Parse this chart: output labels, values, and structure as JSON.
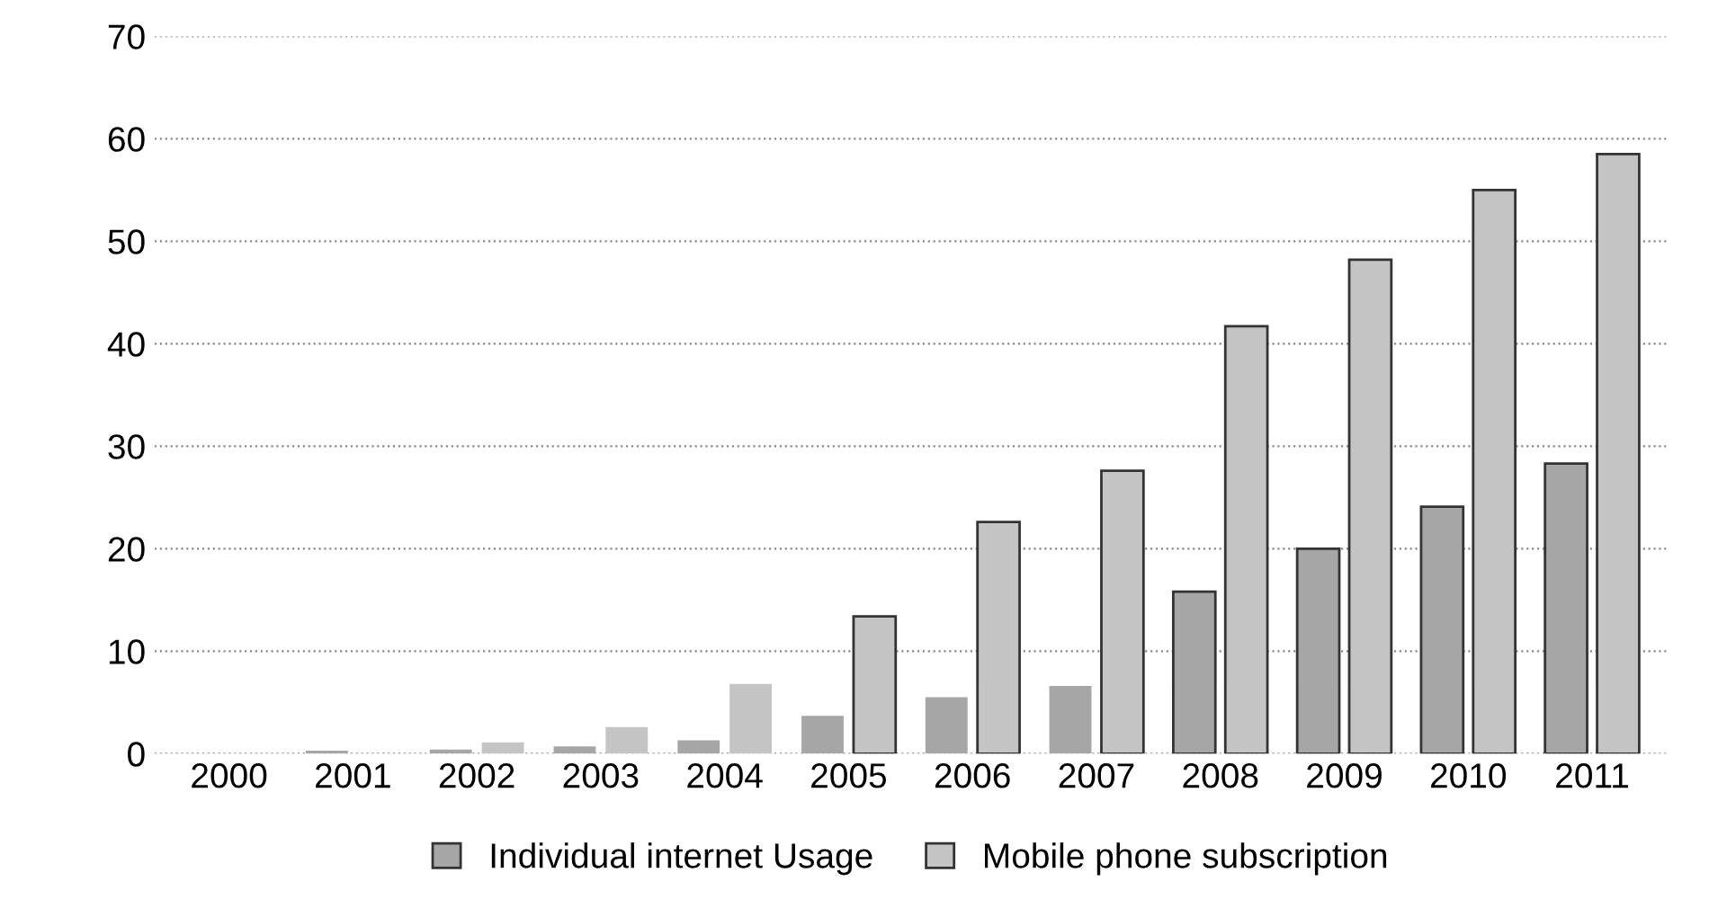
{
  "chart_data": {
    "type": "bar",
    "categories": [
      "2000",
      "2001",
      "2002",
      "2003",
      "2004",
      "2005",
      "2006",
      "2007",
      "2008",
      "2009",
      "2010",
      "2011"
    ],
    "series": [
      {
        "name": "Individual internet Usage",
        "color": "#a6a6a6",
        "values": [
          null,
          0.3,
          0.4,
          0.7,
          1.3,
          3.7,
          5.5,
          6.6,
          15.8,
          20.0,
          24.1,
          28.3
        ]
      },
      {
        "name": "Mobile phone subscription",
        "color": "#c4c4c4",
        "values": [
          0,
          null,
          1.1,
          2.6,
          6.8,
          13.4,
          22.6,
          27.6,
          41.7,
          48.2,
          55.0,
          58.5
        ]
      }
    ],
    "ylim": [
      0,
      70
    ],
    "yticks": [
      0,
      10,
      20,
      30,
      40,
      50,
      60,
      70
    ],
    "grid": "y",
    "legend": "bottom"
  }
}
